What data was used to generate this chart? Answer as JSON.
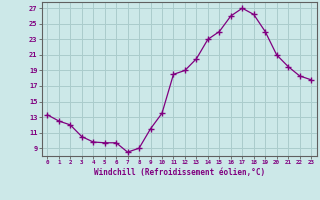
{
  "x": [
    0,
    1,
    2,
    3,
    4,
    5,
    6,
    7,
    8,
    9,
    10,
    11,
    12,
    13,
    14,
    15,
    16,
    17,
    18,
    19,
    20,
    21,
    22,
    23
  ],
  "y": [
    13.3,
    12.5,
    12.0,
    10.5,
    9.8,
    9.7,
    9.7,
    8.5,
    9.0,
    11.5,
    13.5,
    18.5,
    19.0,
    20.5,
    23.0,
    24.0,
    26.0,
    27.0,
    26.2,
    24.0,
    21.0,
    19.5,
    18.3,
    17.8
  ],
  "line_color": "#800080",
  "marker": "+",
  "bg_color": "#cce8e8",
  "grid_color": "#aacccc",
  "xlabel": "Windchill (Refroidissement éolien,°C)",
  "ylabel_ticks": [
    9,
    11,
    13,
    15,
    17,
    19,
    21,
    23,
    25,
    27
  ],
  "xtick_labels": [
    "0",
    "1",
    "2",
    "3",
    "4",
    "5",
    "6",
    "7",
    "8",
    "9",
    "10",
    "11",
    "12",
    "13",
    "14",
    "15",
    "16",
    "17",
    "18",
    "19",
    "20",
    "21",
    "22",
    "23"
  ],
  "xlim": [
    -0.5,
    23.5
  ],
  "ylim": [
    8.0,
    27.8
  ],
  "xlabel_color": "#800080",
  "tick_color": "#800080",
  "axis_color": "#606060",
  "title": ""
}
